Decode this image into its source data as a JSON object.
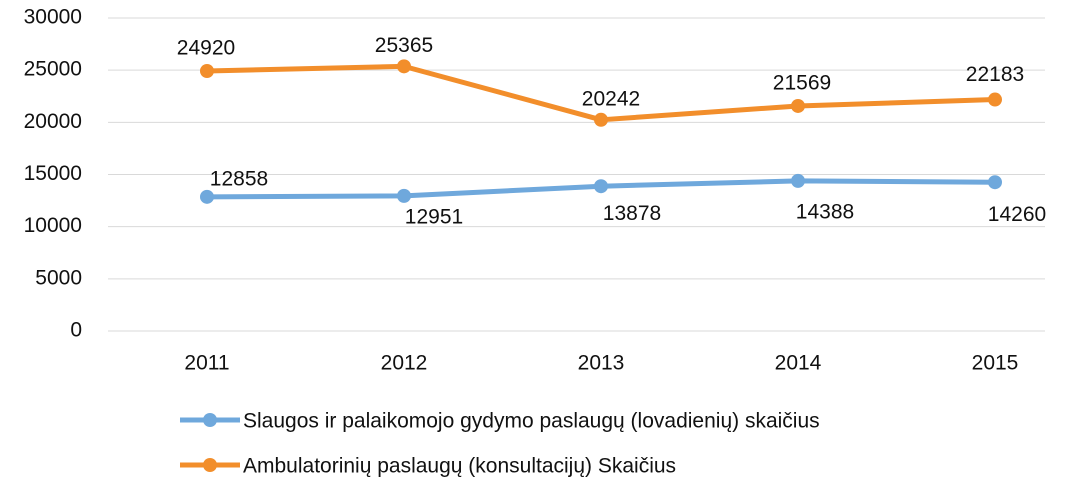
{
  "chart_data": {
    "type": "line",
    "categories": [
      "2011",
      "2012",
      "2013",
      "2014",
      "2015"
    ],
    "series": [
      {
        "name": "Slaugos ir palaikomojo gydymo paslaugų (lovadienių) skaičius",
        "color": "#6fa8dc",
        "values": [
          12858,
          12951,
          13878,
          14388,
          14260
        ]
      },
      {
        "name": "Ambulatorinių paslaugų (konsultacijų) Skaičius",
        "color": "#f28e2b",
        "values": [
          24920,
          25365,
          20242,
          21569,
          22183
        ]
      }
    ],
    "ylim": [
      0,
      30000
    ],
    "yticks": [
      0,
      5000,
      10000,
      15000,
      20000,
      25000,
      30000
    ],
    "grid": true
  }
}
